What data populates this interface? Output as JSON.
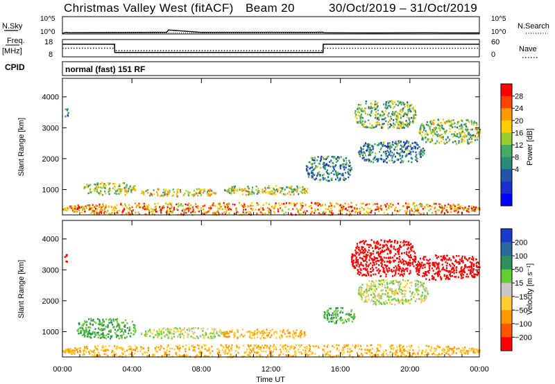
{
  "header": {
    "station": "Christmas Valley West (fitACF)",
    "beam": "Beam 20",
    "dates": "30/Oct/2019 – 31/Oct/2019"
  },
  "summary": {
    "nsky_label": "N.Sky",
    "nsearch_label": "N.Search",
    "freq_label_1": "Freq.",
    "freq_label_2": "[MHz]",
    "nave_label": "Nave",
    "cpid_label": "CPID",
    "cpid_value": "normal (fast) 151 RF",
    "noise_ticks": [
      "10^5",
      "10^0"
    ],
    "noise_ticks_right": [
      "10^5",
      "10^0"
    ],
    "freq_ticks": [
      "18",
      "8"
    ],
    "nave_ticks": [
      "60",
      "0"
    ]
  },
  "axes": {
    "ylabel": "Slant Range [km]",
    "xlabel": "Time UT",
    "x_ticks": [
      "00:00",
      "04:00",
      "08:00",
      "12:00",
      "16:00",
      "20:00",
      "00:00"
    ],
    "y_ticks": [
      "4000",
      "3000",
      "2000",
      "1000"
    ]
  },
  "power_scale": {
    "label": "Power [dB]",
    "ticks": [
      "28",
      "24",
      "20",
      "16",
      "12",
      "8",
      "4"
    ],
    "colors": [
      "#ff0000",
      "#ff4400",
      "#ff9900",
      "#ffcc00",
      "#99cc33",
      "#44aa66",
      "#2a8a7a",
      "#2255aa",
      "#1a2fcc",
      "#0000ff"
    ]
  },
  "velocity_scale": {
    "label": "Velocity [m s⁻¹]",
    "ticks": [
      "200",
      "100",
      "50",
      "15",
      "−15",
      "−50",
      "−100",
      "−200"
    ],
    "colors": [
      "#1a3acc",
      "#2a6a9a",
      "#2d8f5a",
      "#66cc33",
      "#c8c8c8",
      "#ffcc33",
      "#ff9900",
      "#ff5500",
      "#ff0000"
    ]
  },
  "chart_data": [
    {
      "type": "line",
      "panel": "noise",
      "x_hours": [
        0,
        0.2,
        0.4,
        4,
        6,
        6.1,
        8,
        12,
        14,
        15,
        15.1,
        18,
        21,
        24
      ],
      "values": [
        1,
        2,
        1.5,
        1.8,
        2.2,
        12,
        2,
        2.1,
        2,
        2.2,
        1.4,
        1.3,
        1.4,
        1.3
      ],
      "ylim": [
        1,
        100000
      ],
      "yscale": "log"
    },
    {
      "type": "line",
      "panel": "frequency",
      "x_hours": [
        0,
        3,
        3.01,
        15,
        15.01,
        24
      ],
      "values": [
        15.5,
        15.5,
        10.3,
        10.3,
        15.5,
        15.5
      ],
      "ylim": [
        8,
        18
      ]
    },
    {
      "type": "line",
      "panel": "nave",
      "x_hours": [
        0,
        3,
        3.01,
        15,
        15.01,
        24
      ],
      "values": [
        30,
        30,
        21,
        21,
        30,
        30
      ],
      "ylim": [
        0,
        60
      ]
    },
    {
      "type": "heatmap",
      "panel": "power",
      "xlim_hours": [
        0,
        24
      ],
      "ylim_km": [
        180,
        4600
      ],
      "clusters": [
        {
          "t0": 0.1,
          "t1": 0.3,
          "r0": 3350,
          "r1": 3700,
          "value": 8
        },
        {
          "t0": 1.2,
          "t1": 4.2,
          "r0": 850,
          "r1": 1250,
          "value": 16
        },
        {
          "t0": 4.5,
          "t1": 8.8,
          "r0": 800,
          "r1": 1050,
          "value": 18
        },
        {
          "t0": 9.3,
          "t1": 14.2,
          "r0": 850,
          "r1": 1150,
          "value": 17
        },
        {
          "t0": 14.0,
          "t1": 16.6,
          "r0": 1300,
          "r1": 2100,
          "value": 10
        },
        {
          "t0": 16.8,
          "t1": 20.3,
          "r0": 3000,
          "r1": 3900,
          "value": 14
        },
        {
          "t0": 17.0,
          "t1": 20.8,
          "r0": 1900,
          "r1": 2600,
          "value": 9
        },
        {
          "t0": 20.5,
          "t1": 24.0,
          "r0": 2500,
          "r1": 3300,
          "value": 15
        },
        {
          "t0": 0.0,
          "t1": 24.0,
          "r0": 200,
          "r1": 600,
          "value": 22
        }
      ]
    },
    {
      "type": "heatmap",
      "panel": "velocity",
      "xlim_hours": [
        0,
        24
      ],
      "ylim_km": [
        180,
        4600
      ],
      "clusters": [
        {
          "t0": 0.1,
          "t1": 0.3,
          "r0": 3250,
          "r1": 3550,
          "value": -200
        },
        {
          "t0": 0.8,
          "t1": 4.2,
          "r0": 800,
          "r1": 1450,
          "value": 30
        },
        {
          "t0": 4.5,
          "t1": 9.2,
          "r0": 800,
          "r1": 1150,
          "value": 0
        },
        {
          "t0": 9.2,
          "t1": 14.0,
          "r0": 800,
          "r1": 1100,
          "value": -30
        },
        {
          "t0": 15.0,
          "t1": 16.8,
          "r0": 1300,
          "r1": 1800,
          "value": 30
        },
        {
          "t0": 16.6,
          "t1": 20.3,
          "r0": 2800,
          "r1": 4000,
          "value": -200
        },
        {
          "t0": 17.0,
          "t1": 21.0,
          "r0": 1900,
          "r1": 2700,
          "value": 0
        },
        {
          "t0": 20.3,
          "t1": 24.0,
          "r0": 2700,
          "r1": 3500,
          "value": -200
        },
        {
          "t0": 0.0,
          "t1": 24.0,
          "r0": 200,
          "r1": 600,
          "value": -30
        }
      ]
    }
  ]
}
